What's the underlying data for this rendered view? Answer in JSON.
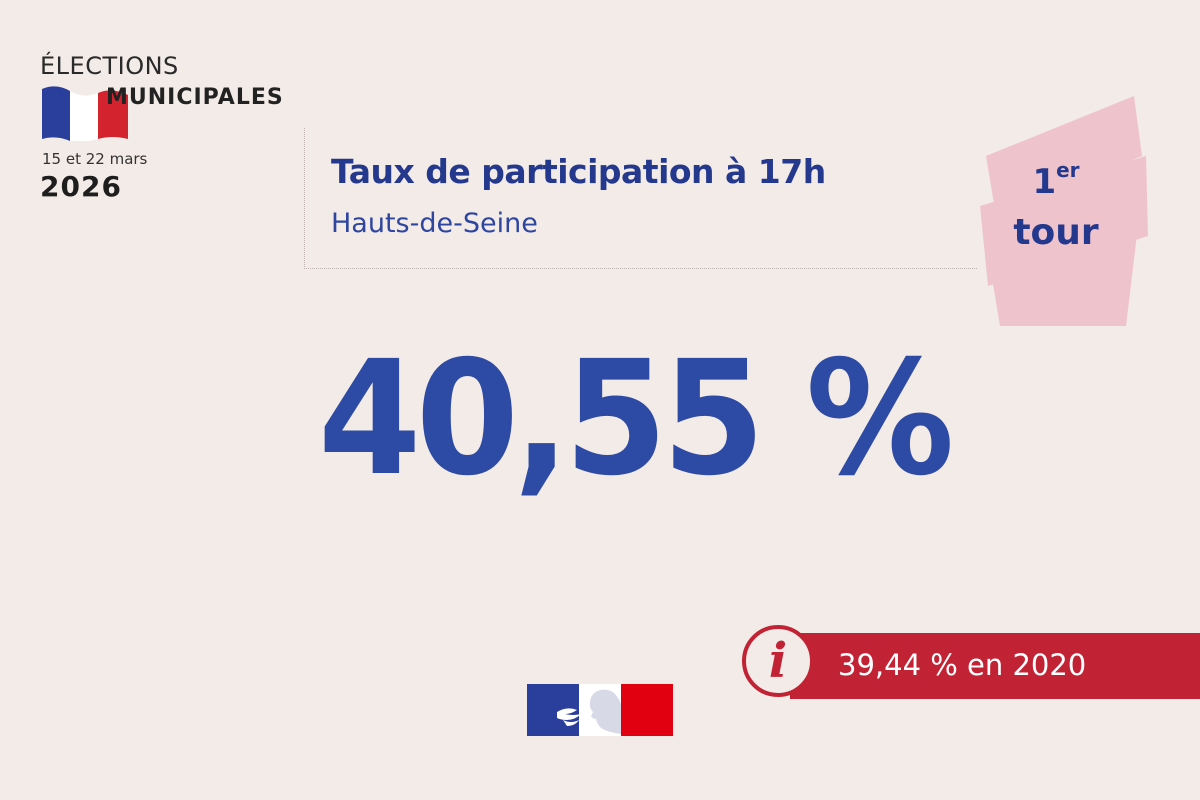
{
  "logo": {
    "line1": "ÉLECTIONS",
    "line2": "MUNICIPALES",
    "dates": "15 et 22 mars",
    "year": "2026",
    "flag_colors": [
      "#2a3f9b",
      "#ffffff",
      "#d2232e"
    ]
  },
  "title": {
    "main": "Taux de participation à 17h",
    "sub": "Hauts-de-Seine"
  },
  "badge": {
    "number": "1",
    "superscript": "er",
    "word": "tour",
    "color": "#efc3cb"
  },
  "result": {
    "value": "40,55 %"
  },
  "comparison": {
    "icon": "info-icon",
    "letter": "i",
    "text": "39,44 % en 2020"
  },
  "emblem": {
    "icon": "marianne-icon"
  },
  "colors": {
    "background": "#f3ebe7",
    "blue": "#2d4ba4",
    "red": "#c22334"
  }
}
